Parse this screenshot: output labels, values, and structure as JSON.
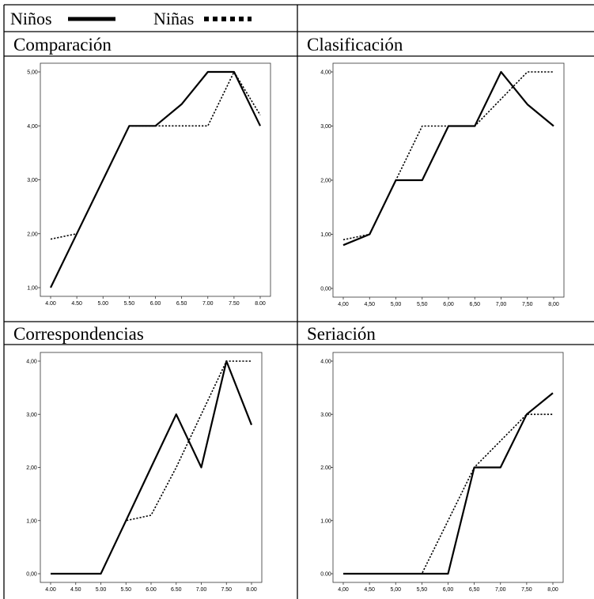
{
  "legend": {
    "ninos_label": "Niños",
    "ninas_label": "Niñas"
  },
  "chart_data": [
    {
      "type": "line",
      "title": "Comparación",
      "x": [
        4,
        4.5,
        5,
        5.5,
        6,
        6.5,
        7,
        7.5,
        8
      ],
      "x_tick_labels": [
        "4.00",
        "4.50",
        "5.00",
        "5.50",
        "6.00",
        "6.50",
        "7.00",
        "7.50",
        "8.00"
      ],
      "ylim": [
        1,
        5
      ],
      "y_ticks": [
        1,
        2,
        3,
        4,
        5
      ],
      "y_tick_labels": [
        "1,00",
        "2,00",
        "3,00",
        "4,00",
        "5,00"
      ],
      "series": [
        {
          "name": "Niños",
          "style": "solid",
          "values": [
            1.0,
            2.0,
            3.0,
            4.0,
            4.0,
            4.4,
            5.0,
            5.0,
            4.0
          ]
        },
        {
          "name": "Niñas",
          "style": "dotted",
          "values": [
            1.9,
            2.0,
            3.0,
            4.0,
            4.0,
            4.0,
            4.0,
            5.0,
            4.2
          ]
        }
      ]
    },
    {
      "type": "line",
      "title": "Clasificación",
      "x": [
        4,
        4.5,
        5,
        5.5,
        6,
        6.5,
        7,
        7.5,
        8
      ],
      "x_tick_labels": [
        "4,00",
        "4,50",
        "5,00",
        "5,50",
        "6,00",
        "6,50",
        "7,00",
        "7,50",
        "8,00"
      ],
      "ylim": [
        0,
        4
      ],
      "y_ticks": [
        0,
        1,
        2,
        3,
        4
      ],
      "y_tick_labels": [
        "0,00",
        "1,00",
        "2,00",
        "3,00",
        "4,00"
      ],
      "series": [
        {
          "name": "Niños",
          "style": "solid",
          "values": [
            0.8,
            1.0,
            2.0,
            2.0,
            3.0,
            3.0,
            4.0,
            3.4,
            3.0
          ]
        },
        {
          "name": "Niñas",
          "style": "dotted",
          "values": [
            0.9,
            1.0,
            2.0,
            3.0,
            3.0,
            3.0,
            3.5,
            4.0,
            4.0
          ]
        }
      ]
    },
    {
      "type": "line",
      "title": "Correspondencias",
      "x": [
        4,
        4.5,
        5,
        5.5,
        6,
        6.5,
        7,
        7.5,
        8
      ],
      "x_tick_labels": [
        "4.00",
        "4.50",
        "5.00",
        "5.50",
        "6.00",
        "6.50",
        "7.00",
        "7.50",
        "8.00"
      ],
      "ylim": [
        0,
        4
      ],
      "y_ticks": [
        0,
        1,
        2,
        3,
        4
      ],
      "y_tick_labels": [
        "0,00",
        "1,00",
        "2,00",
        "3,00",
        "4,00"
      ],
      "series": [
        {
          "name": "Niños",
          "style": "solid",
          "values": [
            0.0,
            0.0,
            0.0,
            1.0,
            2.0,
            3.0,
            2.0,
            4.0,
            2.8
          ]
        },
        {
          "name": "Niñas",
          "style": "dotted",
          "values": [
            0.0,
            0.0,
            0.0,
            1.0,
            1.1,
            2.0,
            3.0,
            4.0,
            4.0
          ]
        }
      ]
    },
    {
      "type": "line",
      "title": "Seriación",
      "x": [
        4,
        4.5,
        5,
        5.5,
        6,
        6.5,
        7,
        7.5,
        8
      ],
      "x_tick_labels": [
        "4,00",
        "4,50",
        "5,00",
        "5,50",
        "6,00",
        "6,50",
        "7,00",
        "7,50",
        "8,00"
      ],
      "ylim": [
        0,
        4
      ],
      "y_ticks": [
        0,
        1,
        2,
        3,
        4
      ],
      "y_tick_labels": [
        "0.00",
        "1.00",
        "2.00",
        "3.00",
        "4.00"
      ],
      "series": [
        {
          "name": "Niños",
          "style": "solid",
          "values": [
            0.0,
            0.0,
            0.0,
            0.0,
            0.0,
            2.0,
            2.0,
            3.0,
            3.4
          ]
        },
        {
          "name": "Niñas",
          "style": "dotted",
          "values": [
            0.0,
            0.0,
            0.0,
            0.0,
            1.0,
            2.0,
            2.5,
            3.0,
            3.0
          ]
        }
      ]
    }
  ]
}
